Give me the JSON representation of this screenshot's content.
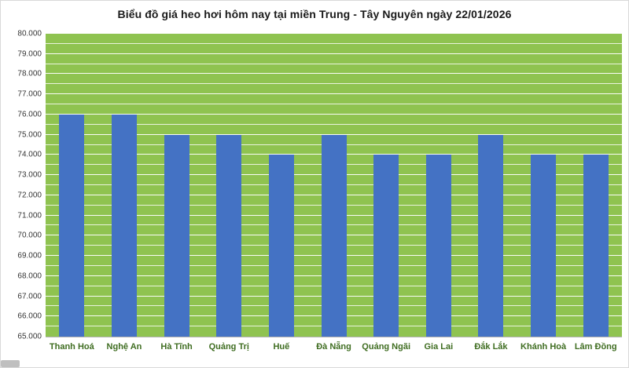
{
  "chart_data": {
    "type": "bar",
    "title": "Biểu đồ giá heo hơi hôm nay tại miền Trung - Tây Nguyên ngày 22/01/2026",
    "categories": [
      "Thanh Hoá",
      "Nghệ An",
      "Hà Tĩnh",
      "Quảng Trị",
      "Huế",
      "Đà Nẵng",
      "Quảng Ngãi",
      "Gia Lai",
      "Đắk Lắk",
      "Khánh Hoà",
      "Lâm Đồng"
    ],
    "values": [
      76000,
      76000,
      75000,
      75000,
      74000,
      75000,
      74000,
      74000,
      75000,
      74000,
      74000
    ],
    "xlabel": "",
    "ylabel": "",
    "ylim": [
      65000,
      80000
    ],
    "y_major_step": 1000,
    "y_minor_step": 500,
    "y_tick_labels": [
      "80.000",
      "79.000",
      "78.000",
      "77.000",
      "76.000",
      "75.000",
      "74.000",
      "73.000",
      "72.000",
      "71.000",
      "70.000",
      "69.000",
      "68.000",
      "67.000",
      "66.000",
      "65.000"
    ],
    "grid": true,
    "legend": false,
    "colors": {
      "bar": "#4472C4",
      "plot_background": "#8FC350",
      "gridline": "#FFFFFF",
      "x_label": "#3F6D21",
      "y_label": "#333333",
      "title": "#1A1A1A"
    }
  }
}
